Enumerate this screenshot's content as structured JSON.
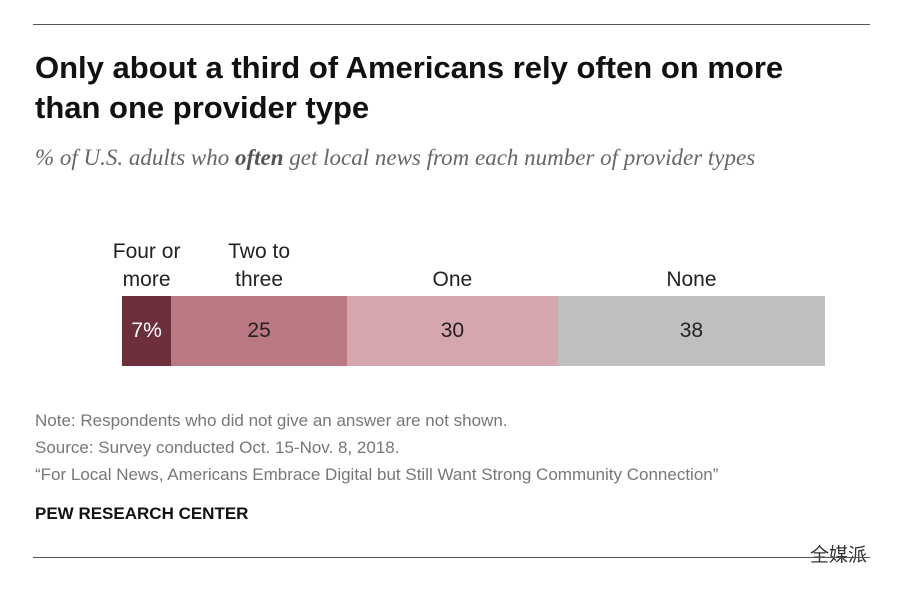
{
  "chart_data": {
    "type": "stacked-bar",
    "title": "Only about a third of Americans rely often on more than one provider type",
    "subtitle": [
      "% of U.S. adults who ",
      "often",
      " get local news from each number of provider types"
    ],
    "categories": [
      "Four or more",
      "Two to three",
      "One",
      "None"
    ],
    "values": [
      7,
      25,
      30,
      38
    ],
    "value_labels": [
      "7%",
      "25",
      "30",
      "38"
    ],
    "colors": [
      "#6e2f3d",
      "#b97882",
      "#d5a6ad",
      "#bfbfbf"
    ],
    "label_colors": [
      "#ffffff",
      "#222222",
      "#222222",
      "#222222"
    ],
    "xlim": [
      0,
      100
    ],
    "notes": [
      "Note: Respondents who did not give an answer are not shown.",
      "Source: Survey conducted Oct. 15-Nov. 8, 2018.",
      "“For Local News, Americans Embrace Digital but Still Want Strong Community Connection”"
    ],
    "source": "PEW RESEARCH CENTER",
    "watermark": "全媒派"
  }
}
